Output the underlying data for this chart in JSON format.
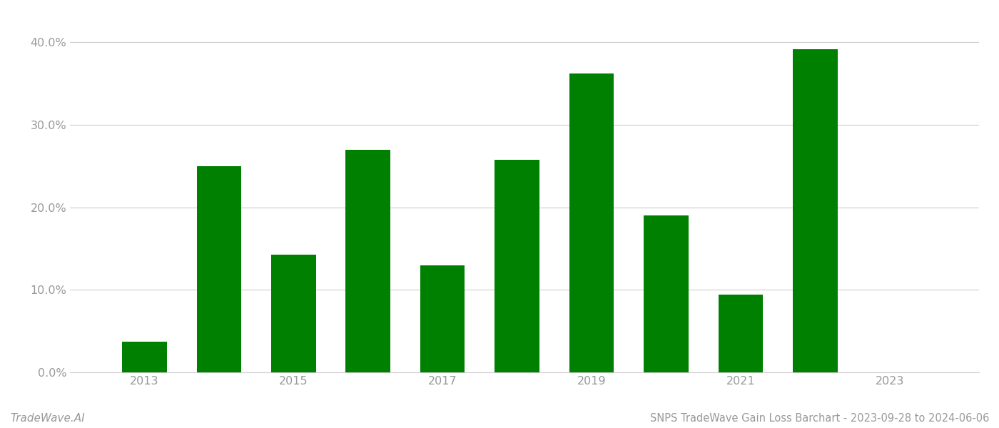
{
  "years": [
    2013,
    2014,
    2015,
    2016,
    2017,
    2018,
    2019,
    2020,
    2021,
    2022
  ],
  "values": [
    0.037,
    0.25,
    0.143,
    0.27,
    0.13,
    0.258,
    0.362,
    0.19,
    0.094,
    0.392
  ],
  "bar_color": "#008000",
  "background_color": "#ffffff",
  "ylabel_color": "#999999",
  "xlabel_color": "#999999",
  "grid_color": "#cccccc",
  "ylim": [
    0.0,
    0.415
  ],
  "yticks": [
    0.0,
    0.1,
    0.2,
    0.3,
    0.4
  ],
  "xticks": [
    2013,
    2015,
    2017,
    2019,
    2021,
    2023
  ],
  "title": "SNPS TradeWave Gain Loss Barchart - 2023-09-28 to 2024-06-06",
  "watermark": "TradeWave.AI",
  "title_color": "#999999",
  "watermark_color": "#999999",
  "bar_width": 0.6,
  "xlim_left": 2012.0,
  "xlim_right": 2024.2
}
